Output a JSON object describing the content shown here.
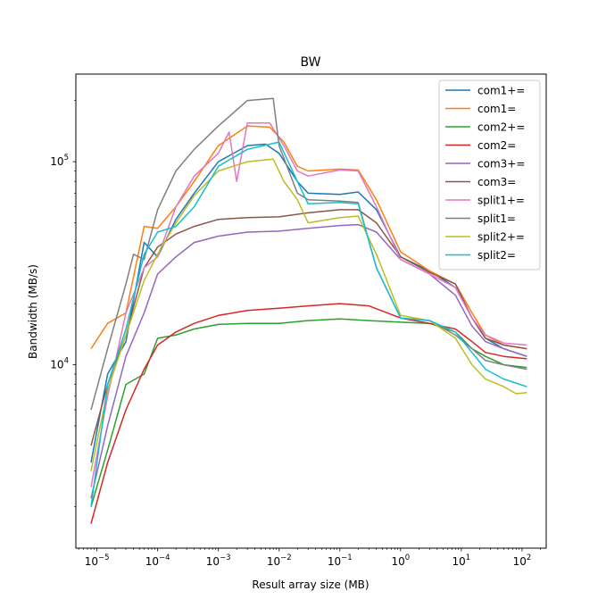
{
  "chart_data": {
    "type": "line",
    "title": "BW",
    "xlabel": "Result array size (MB)",
    "ylabel": "Bandwidth (MB/s)",
    "xscale": "log",
    "yscale": "log",
    "xlim": [
      4.5e-06,
      250
    ],
    "ylim": [
      1250,
      270000
    ],
    "x_ticks": [
      {
        "value": 1e-05,
        "base": "10",
        "exp": "−5"
      },
      {
        "value": 0.0001,
        "base": "10",
        "exp": "−4"
      },
      {
        "value": 0.001,
        "base": "10",
        "exp": "−3"
      },
      {
        "value": 0.01,
        "base": "10",
        "exp": "−2"
      },
      {
        "value": 0.1,
        "base": "10",
        "exp": "−1"
      },
      {
        "value": 1,
        "base": "10",
        "exp": "0"
      },
      {
        "value": 10,
        "base": "10",
        "exp": "1"
      },
      {
        "value": 100,
        "base": "10",
        "exp": "2"
      }
    ],
    "y_ticks": [
      {
        "value": 10000,
        "base": "10",
        "exp": "4"
      },
      {
        "value": 100000,
        "base": "10",
        "exp": "5"
      }
    ],
    "legend_position": "top-right",
    "series": [
      {
        "name": "com1+=",
        "color": "#1f77b4",
        "points": [
          [
            8e-06,
            3300
          ],
          [
            1.5e-05,
            9000
          ],
          [
            3e-05,
            13000
          ],
          [
            6e-05,
            40000
          ],
          [
            0.0001,
            34000
          ],
          [
            0.0002,
            52000
          ],
          [
            0.0004,
            70000
          ],
          [
            0.001,
            100000
          ],
          [
            0.003,
            120000
          ],
          [
            0.006,
            122000
          ],
          [
            0.01,
            110000
          ],
          [
            0.02,
            80000
          ],
          [
            0.03,
            70000
          ],
          [
            0.1,
            69000
          ],
          [
            0.2,
            71000
          ],
          [
            0.4,
            58000
          ],
          [
            1,
            34000
          ],
          [
            3,
            29000
          ],
          [
            8,
            24000
          ],
          [
            15,
            17000
          ],
          [
            25,
            13500
          ],
          [
            50,
            12000
          ],
          [
            120,
            11000
          ]
        ]
      },
      {
        "name": "com1=",
        "color": "#ff7f0e",
        "points": [
          [
            8e-06,
            12000
          ],
          [
            1.5e-05,
            16000
          ],
          [
            3e-05,
            18000
          ],
          [
            6e-05,
            48000
          ],
          [
            0.0001,
            47000
          ],
          [
            0.0002,
            60000
          ],
          [
            0.0004,
            80000
          ],
          [
            0.001,
            120000
          ],
          [
            0.003,
            150000
          ],
          [
            0.007,
            148000
          ],
          [
            0.012,
            125000
          ],
          [
            0.02,
            95000
          ],
          [
            0.03,
            90000
          ],
          [
            0.1,
            92000
          ],
          [
            0.2,
            91000
          ],
          [
            0.4,
            65000
          ],
          [
            1,
            36000
          ],
          [
            3,
            29000
          ],
          [
            8,
            25000
          ],
          [
            15,
            18000
          ],
          [
            25,
            14000
          ],
          [
            50,
            12500
          ],
          [
            120,
            12000
          ]
        ]
      },
      {
        "name": "com2+=",
        "color": "#2ca02c",
        "points": [
          [
            8e-06,
            2000
          ],
          [
            1.5e-05,
            3800
          ],
          [
            3e-05,
            8000
          ],
          [
            6e-05,
            9000
          ],
          [
            0.0001,
            13500
          ],
          [
            0.0002,
            14000
          ],
          [
            0.0004,
            15000
          ],
          [
            0.001,
            15800
          ],
          [
            0.003,
            16000
          ],
          [
            0.01,
            16000
          ],
          [
            0.03,
            16500
          ],
          [
            0.1,
            16800
          ],
          [
            0.3,
            16500
          ],
          [
            1,
            16200
          ],
          [
            3,
            16000
          ],
          [
            8,
            14500
          ],
          [
            15,
            12000
          ],
          [
            25,
            11000
          ],
          [
            50,
            10000
          ],
          [
            120,
            9700
          ]
        ]
      },
      {
        "name": "com2=",
        "color": "#d62728",
        "points": [
          [
            8e-06,
            1650
          ],
          [
            1.5e-05,
            3300
          ],
          [
            3e-05,
            6000
          ],
          [
            6e-05,
            9500
          ],
          [
            0.0001,
            12500
          ],
          [
            0.0002,
            14500
          ],
          [
            0.0004,
            16000
          ],
          [
            0.001,
            17500
          ],
          [
            0.003,
            18500
          ],
          [
            0.01,
            19000
          ],
          [
            0.03,
            19500
          ],
          [
            0.1,
            20000
          ],
          [
            0.3,
            19500
          ],
          [
            1,
            17000
          ],
          [
            3,
            16000
          ],
          [
            8,
            15000
          ],
          [
            15,
            13000
          ],
          [
            25,
            11500
          ],
          [
            50,
            11000
          ],
          [
            120,
            10700
          ]
        ]
      },
      {
        "name": "com3+=",
        "color": "#9467bd",
        "points": [
          [
            8e-06,
            2200
          ],
          [
            1.5e-05,
            5000
          ],
          [
            3e-05,
            11000
          ],
          [
            6e-05,
            18000
          ],
          [
            0.0001,
            28000
          ],
          [
            0.0002,
            34000
          ],
          [
            0.0004,
            40000
          ],
          [
            0.001,
            43000
          ],
          [
            0.003,
            45000
          ],
          [
            0.01,
            45500
          ],
          [
            0.03,
            47000
          ],
          [
            0.1,
            48500
          ],
          [
            0.2,
            49000
          ],
          [
            0.4,
            45000
          ],
          [
            1,
            33000
          ],
          [
            3,
            28000
          ],
          [
            8,
            22000
          ],
          [
            15,
            15500
          ],
          [
            25,
            13000
          ],
          [
            50,
            12000
          ],
          [
            120,
            11000
          ]
        ]
      },
      {
        "name": "com3=",
        "color": "#8c564b",
        "points": [
          [
            8e-06,
            4000
          ],
          [
            1.5e-05,
            8000
          ],
          [
            3e-05,
            14000
          ],
          [
            6e-05,
            30000
          ],
          [
            0.0001,
            38000
          ],
          [
            0.0002,
            44000
          ],
          [
            0.0004,
            48000
          ],
          [
            0.001,
            52000
          ],
          [
            0.003,
            53000
          ],
          [
            0.01,
            53500
          ],
          [
            0.03,
            56000
          ],
          [
            0.1,
            58000
          ],
          [
            0.2,
            58000
          ],
          [
            0.4,
            50000
          ],
          [
            1,
            34000
          ],
          [
            3,
            28500
          ],
          [
            8,
            25000
          ],
          [
            15,
            17000
          ],
          [
            25,
            13500
          ],
          [
            50,
            12500
          ],
          [
            120,
            12000
          ]
        ]
      },
      {
        "name": "split1+=",
        "color": "#e377c2",
        "points": [
          [
            8e-06,
            2500
          ],
          [
            1.5e-05,
            7000
          ],
          [
            3e-05,
            18000
          ],
          [
            6e-05,
            30000
          ],
          [
            0.0001,
            34000
          ],
          [
            0.0002,
            60000
          ],
          [
            0.0004,
            85000
          ],
          [
            0.001,
            110000
          ],
          [
            0.0015,
            140000
          ],
          [
            0.002,
            80000
          ],
          [
            0.003,
            155000
          ],
          [
            0.007,
            155000
          ],
          [
            0.012,
            120000
          ],
          [
            0.02,
            90000
          ],
          [
            0.03,
            85000
          ],
          [
            0.1,
            91000
          ],
          [
            0.2,
            90000
          ],
          [
            0.4,
            60000
          ],
          [
            1,
            33000
          ],
          [
            3,
            28000
          ],
          [
            8,
            24000
          ],
          [
            15,
            17000
          ],
          [
            25,
            14000
          ],
          [
            50,
            12800
          ],
          [
            120,
            12500
          ]
        ]
      },
      {
        "name": "split1=",
        "color": "#7f7f7f",
        "points": [
          [
            8e-06,
            6000
          ],
          [
            1.5e-05,
            12000
          ],
          [
            3e-05,
            25000
          ],
          [
            4e-05,
            35000
          ],
          [
            6e-05,
            33000
          ],
          [
            0.0001,
            58000
          ],
          [
            0.0002,
            90000
          ],
          [
            0.0004,
            115000
          ],
          [
            0.001,
            150000
          ],
          [
            0.003,
            200000
          ],
          [
            0.008,
            205000
          ],
          [
            0.01,
            120000
          ],
          [
            0.02,
            70000
          ],
          [
            0.03,
            65000
          ],
          [
            0.1,
            64000
          ],
          [
            0.2,
            63000
          ],
          [
            0.4,
            30000
          ],
          [
            1,
            17000
          ],
          [
            3,
            16500
          ],
          [
            8,
            14000
          ],
          [
            15,
            12000
          ],
          [
            25,
            10500
          ],
          [
            50,
            10000
          ],
          [
            120,
            9500
          ]
        ]
      },
      {
        "name": "split2+=",
        "color": "#bcbd22",
        "points": [
          [
            8e-06,
            3000
          ],
          [
            1.5e-05,
            7500
          ],
          [
            3e-05,
            14000
          ],
          [
            6e-05,
            26000
          ],
          [
            0.0001,
            35000
          ],
          [
            0.0002,
            50000
          ],
          [
            0.0004,
            68000
          ],
          [
            0.001,
            90000
          ],
          [
            0.003,
            100000
          ],
          [
            0.008,
            103000
          ],
          [
            0.012,
            80000
          ],
          [
            0.02,
            65000
          ],
          [
            0.03,
            50000
          ],
          [
            0.1,
            53000
          ],
          [
            0.2,
            54000
          ],
          [
            0.4,
            35000
          ],
          [
            1,
            17500
          ],
          [
            3,
            16500
          ],
          [
            8,
            13500
          ],
          [
            15,
            10000
          ],
          [
            25,
            8500
          ],
          [
            50,
            7800
          ],
          [
            80,
            7200
          ],
          [
            120,
            7300
          ]
        ]
      },
      {
        "name": "split2=",
        "color": "#17becf",
        "points": [
          [
            8e-06,
            2000
          ],
          [
            1.5e-05,
            8000
          ],
          [
            3e-05,
            15000
          ],
          [
            6e-05,
            35000
          ],
          [
            0.0001,
            45000
          ],
          [
            0.0002,
            48000
          ],
          [
            0.0004,
            60000
          ],
          [
            0.001,
            95000
          ],
          [
            0.003,
            115000
          ],
          [
            0.01,
            125000
          ],
          [
            0.02,
            80000
          ],
          [
            0.03,
            62000
          ],
          [
            0.1,
            63000
          ],
          [
            0.2,
            62000
          ],
          [
            0.4,
            30000
          ],
          [
            1,
            17000
          ],
          [
            3,
            16500
          ],
          [
            8,
            14500
          ],
          [
            15,
            11500
          ],
          [
            25,
            9500
          ],
          [
            50,
            8500
          ],
          [
            120,
            7800
          ]
        ]
      }
    ]
  }
}
